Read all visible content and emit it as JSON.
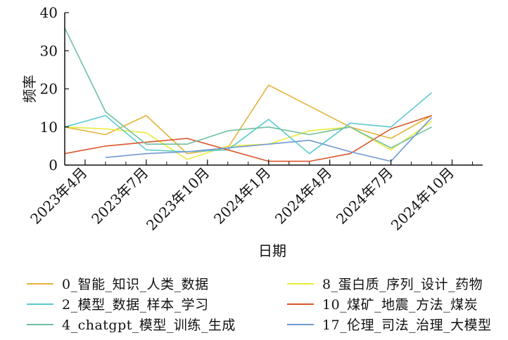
{
  "chart_data": {
    "type": "line",
    "xlabel": "日期",
    "ylabel": "频率",
    "ylim": [
      0,
      40
    ],
    "yticks": [
      0,
      10,
      20,
      30,
      40
    ],
    "xlim": [
      0,
      20.5
    ],
    "x_tick_labels": [
      "2023年4月",
      "2023年7月",
      "2023年10月",
      "2024年1月",
      "2024年4月",
      "2024年7月",
      "2024年10月"
    ],
    "x_tick_positions": [
      1,
      4,
      7,
      10,
      13,
      16,
      19
    ],
    "grid": false,
    "legend_position": "bottom",
    "series": [
      {
        "name": "0_智能_知识_人类_数据",
        "color": "#e6b33a",
        "points": [
          [
            0,
            10
          ],
          [
            2,
            8
          ],
          [
            4,
            13
          ],
          [
            6,
            3
          ],
          [
            8,
            4.5
          ],
          [
            10,
            21
          ],
          [
            12,
            15.5
          ],
          [
            14,
            10
          ],
          [
            16,
            7
          ],
          [
            18,
            13
          ]
        ]
      },
      {
        "name": "8_蛋白质_序列_设计_药物",
        "color": "#eaea3c",
        "points": [
          [
            0,
            10
          ],
          [
            2,
            9.5
          ],
          [
            4,
            8.5
          ],
          [
            6,
            1.5
          ],
          [
            8,
            5
          ],
          [
            10,
            5.5
          ],
          [
            12,
            9
          ],
          [
            14,
            10
          ],
          [
            16,
            4
          ],
          [
            18,
            11.5
          ]
        ]
      },
      {
        "name": "2_模型_数据_样本_学习",
        "color": "#5cc9d0",
        "points": [
          [
            0,
            10
          ],
          [
            2,
            13
          ],
          [
            4,
            4
          ],
          [
            6,
            3.5
          ],
          [
            8,
            4
          ],
          [
            10,
            12
          ],
          [
            12,
            3
          ],
          [
            14,
            11
          ],
          [
            16,
            10
          ],
          [
            18,
            19
          ]
        ]
      },
      {
        "name": "10_煤矿_地震_方法_煤炭",
        "color": "#d9572b",
        "points": [
          [
            0,
            3
          ],
          [
            2,
            5
          ],
          [
            4,
            6
          ],
          [
            6,
            7
          ],
          [
            8,
            4
          ],
          [
            10,
            1
          ],
          [
            12,
            1
          ],
          [
            14,
            3
          ],
          [
            16,
            9.5
          ],
          [
            18,
            13
          ]
        ]
      },
      {
        "name": "4_chatgpt_模型_训练_生成",
        "color": "#6ec0a0",
        "points": [
          [
            0,
            36
          ],
          [
            2,
            14
          ],
          [
            4,
            5.5
          ],
          [
            6,
            5.5
          ],
          [
            8,
            9
          ],
          [
            10,
            10
          ],
          [
            12,
            8
          ],
          [
            14,
            10
          ],
          [
            16,
            4.5
          ],
          [
            18,
            10
          ]
        ]
      },
      {
        "name": "17_伦理_司法_治理_大模型",
        "color": "#6f9ad0",
        "points": [
          [
            2,
            2
          ],
          [
            4,
            3
          ],
          [
            6,
            3.5
          ],
          [
            8,
            4.5
          ],
          [
            10,
            5.5
          ],
          [
            12,
            6.5
          ],
          [
            14,
            3.5
          ],
          [
            16,
            1
          ],
          [
            18,
            12.5
          ]
        ]
      }
    ]
  }
}
